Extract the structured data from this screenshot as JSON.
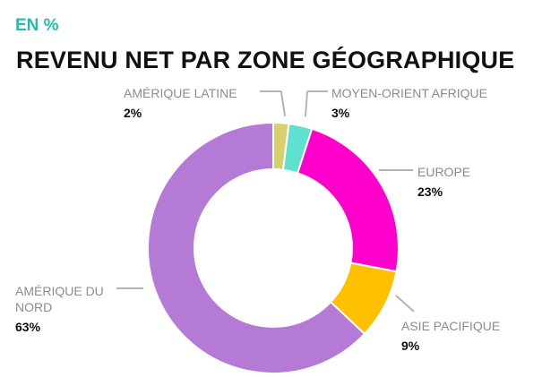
{
  "header": {
    "unit_label": "EN %",
    "title": "REVENU NET PAR ZONE GÉOGRAPHIQUE"
  },
  "chart_data": {
    "type": "pie",
    "variant": "donut",
    "title": "REVENU NET PAR ZONE GÉOGRAPHIQUE",
    "unit": "EN %",
    "slices": [
      {
        "label": "AMÉRIQUE LATINE",
        "value": 2,
        "value_label": "2%",
        "color": "#d8cf6e"
      },
      {
        "label": "MOYEN-ORIENT AFRIQUE",
        "value": 3,
        "value_label": "3%",
        "color": "#5fe0d0"
      },
      {
        "label": "EUROPE",
        "value": 23,
        "value_label": "23%",
        "color": "#ff00cc"
      },
      {
        "label": "ASIE PACIFIQUE",
        "value": 9,
        "value_label": "9%",
        "color": "#ffc000"
      },
      {
        "label": "AMÉRIQUE DU NORD",
        "value": 63,
        "value_label": "63%",
        "color": "#b57ad6"
      }
    ],
    "legend": "none",
    "data_labels": "outside with leader lines"
  }
}
